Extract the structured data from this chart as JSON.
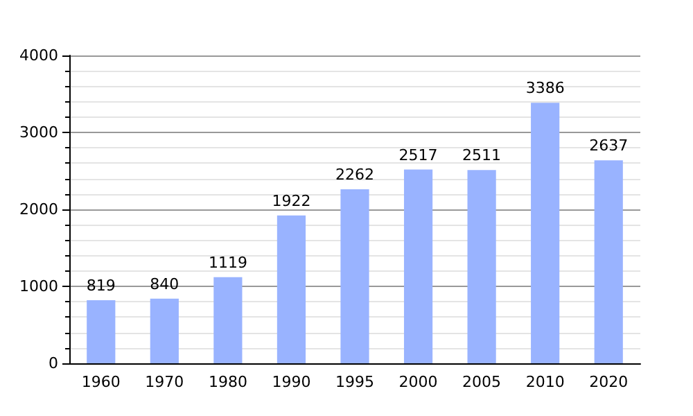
{
  "chart_data": {
    "type": "bar",
    "categories": [
      "1960",
      "1970",
      "1980",
      "1990",
      "1995",
      "2000",
      "2005",
      "2010",
      "2020"
    ],
    "values": [
      819,
      840,
      1119,
      1922,
      2262,
      2517,
      2511,
      3386,
      2637
    ],
    "color": "#99b3ff",
    "ylim": [
      0,
      4000
    ],
    "yticks": [
      0,
      1000,
      2000,
      3000,
      4000
    ],
    "grid": "y",
    "data_labels": true
  }
}
